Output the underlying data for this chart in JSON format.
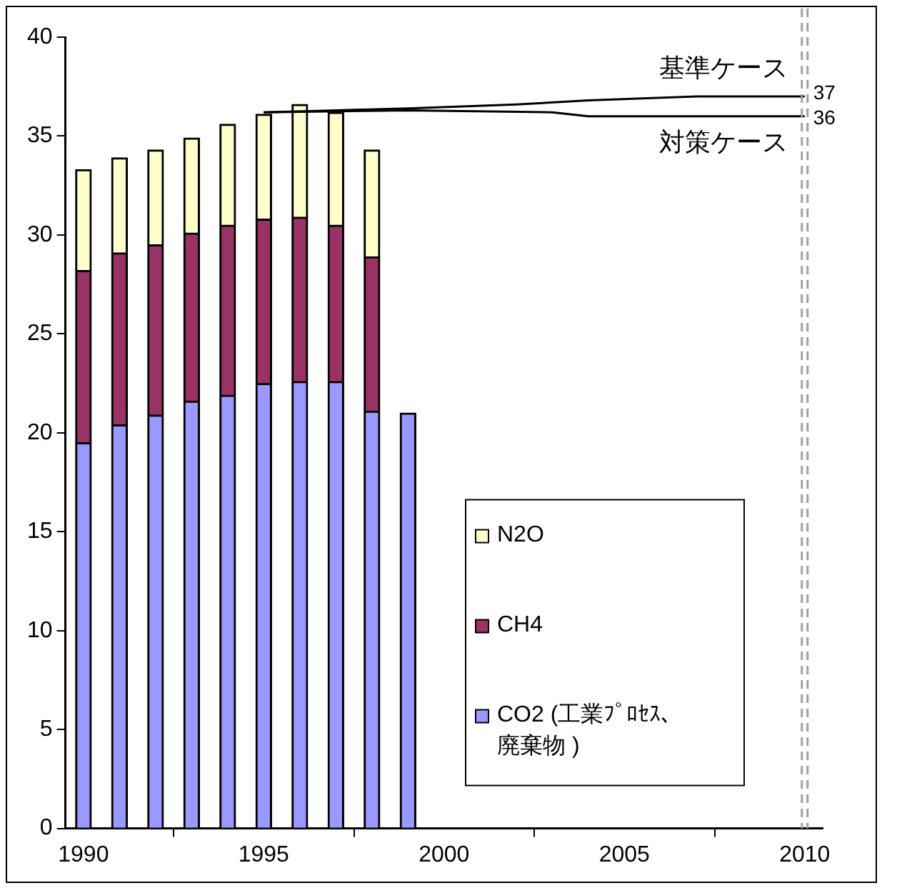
{
  "chart_data": {
    "type": "bar",
    "stacked": true,
    "x": [
      1990,
      1991,
      1992,
      1993,
      1994,
      1995,
      1996,
      1997,
      1998,
      1999
    ],
    "series": [
      {
        "name": "CO2 (工業ﾌﾟﾛｾｽ、廃棄物 )",
        "color": "#9999ff",
        "values": [
          19.5,
          20.4,
          20.9,
          21.6,
          21.9,
          22.5,
          22.6,
          22.6,
          21.1,
          21.0
        ]
      },
      {
        "name": "CH4",
        "color": "#993366",
        "values": [
          8.7,
          8.7,
          8.6,
          8.5,
          8.6,
          8.3,
          8.3,
          7.9,
          7.8,
          null
        ]
      },
      {
        "name": "N2O",
        "color": "#ffffcc",
        "values": [
          5.1,
          4.8,
          4.8,
          4.8,
          5.1,
          5.3,
          5.7,
          5.7,
          5.4,
          null
        ]
      },
      {
        "name": "基準ケース",
        "type": "line",
        "color": "#000000",
        "x": [
          1995,
          1997,
          1999,
          2002,
          2004,
          2007,
          2010
        ],
        "values": [
          36.2,
          36.3,
          36.4,
          36.6,
          36.8,
          37.0,
          37.0
        ],
        "value_labels": [
          null,
          null,
          null,
          null,
          null,
          null,
          "37"
        ]
      },
      {
        "name": "対策ケース",
        "type": "line",
        "color": "#000000",
        "x": [
          1995,
          1999,
          2003,
          2004,
          2010
        ],
        "values": [
          36.2,
          36.3,
          36.2,
          36.0,
          36.0
        ],
        "value_labels": [
          null,
          null,
          null,
          null,
          "36"
        ]
      }
    ],
    "xlim": [
      1989.5,
      2010.5
    ],
    "xticks": [
      1990,
      1995,
      2000,
      2005,
      2010
    ],
    "ylim": [
      0,
      40
    ],
    "yticks": [
      0,
      5,
      10,
      15,
      20,
      25,
      30,
      35,
      40
    ],
    "ref_lines": [
      {
        "axis": "x",
        "value": 2010,
        "color": "#a0a0a0",
        "line_style": "dashed"
      }
    ],
    "grid": false,
    "legend": "bottom right",
    "marker": "none"
  }
}
